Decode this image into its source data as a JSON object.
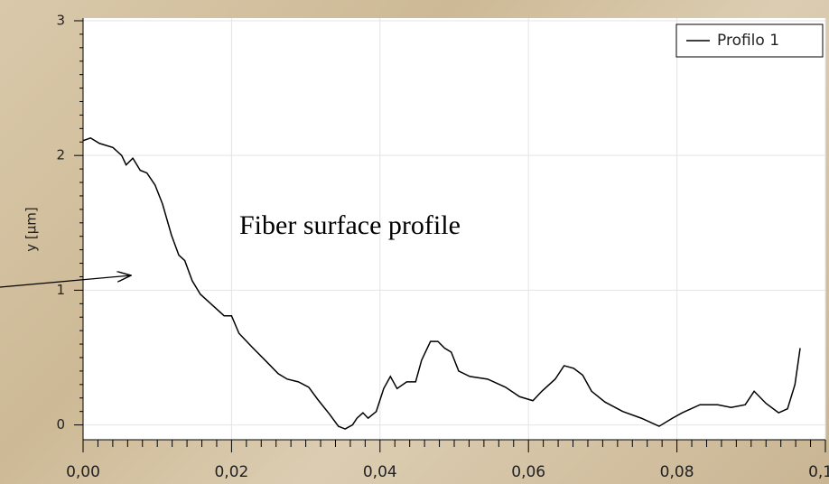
{
  "chart_data": {
    "type": "line",
    "y_label": "y [µm]",
    "annotation": "Fiber surface profile",
    "legend": "top-right",
    "grid": true,
    "xlim": [
      0,
      0.1
    ],
    "ylim": [
      -0.11,
      3.02
    ],
    "xticks": [
      {
        "value": 0,
        "label": "0,00"
      },
      {
        "value": 0.02,
        "label": "0,02"
      },
      {
        "value": 0.04,
        "label": "0,04"
      },
      {
        "value": 0.06,
        "label": "0,06"
      },
      {
        "value": 0.08,
        "label": "0,08"
      },
      {
        "value": 0.1,
        "label": "0,10"
      }
    ],
    "yticks": [
      0,
      1,
      2,
      3
    ],
    "series": [
      {
        "name": "Profilo 1",
        "color": "#000000",
        "x": [
          0,
          0.001,
          0.0022,
          0.004,
          0.0052,
          0.0058,
          0.0067,
          0.0077,
          0.0086,
          0.0097,
          0.0107,
          0.0119,
          0.0129,
          0.0137,
          0.0147,
          0.0158,
          0.0174,
          0.019,
          0.02,
          0.021,
          0.0229,
          0.0247,
          0.0263,
          0.0275,
          0.029,
          0.0304,
          0.0316,
          0.0332,
          0.0344,
          0.0353,
          0.0363,
          0.0369,
          0.0377,
          0.0384,
          0.0395,
          0.0405,
          0.0414,
          0.0423,
          0.0436,
          0.0448,
          0.0456,
          0.0468,
          0.0478,
          0.0487,
          0.0496,
          0.0506,
          0.0521,
          0.0545,
          0.0569,
          0.0588,
          0.0606,
          0.0618,
          0.0636,
          0.0648,
          0.0661,
          0.0673,
          0.0685,
          0.0703,
          0.0727,
          0.0752,
          0.0776,
          0.0794,
          0.0807,
          0.0831,
          0.0855,
          0.0873,
          0.0892,
          0.0904,
          0.092,
          0.0937,
          0.0949,
          0.0959,
          0.0966
        ],
        "values": [
          2.11,
          2.13,
          2.09,
          2.06,
          2.0,
          1.93,
          1.98,
          1.89,
          1.87,
          1.78,
          1.64,
          1.41,
          1.26,
          1.22,
          1.07,
          0.97,
          0.89,
          0.81,
          0.81,
          0.68,
          0.57,
          0.47,
          0.38,
          0.34,
          0.32,
          0.28,
          0.19,
          0.08,
          -0.01,
          -0.03,
          0,
          0.05,
          0.09,
          0.05,
          0.1,
          0.27,
          0.36,
          0.27,
          0.32,
          0.32,
          0.48,
          0.62,
          0.62,
          0.57,
          0.54,
          0.4,
          0.36,
          0.34,
          0.28,
          0.21,
          0.18,
          0.25,
          0.34,
          0.44,
          0.42,
          0.37,
          0.25,
          0.17,
          0.1,
          0.05,
          -0.01,
          0.05,
          0.09,
          0.15,
          0.15,
          0.13,
          0.15,
          0.25,
          0.16,
          0.09,
          0.12,
          0.3,
          0.57
        ]
      }
    ]
  }
}
